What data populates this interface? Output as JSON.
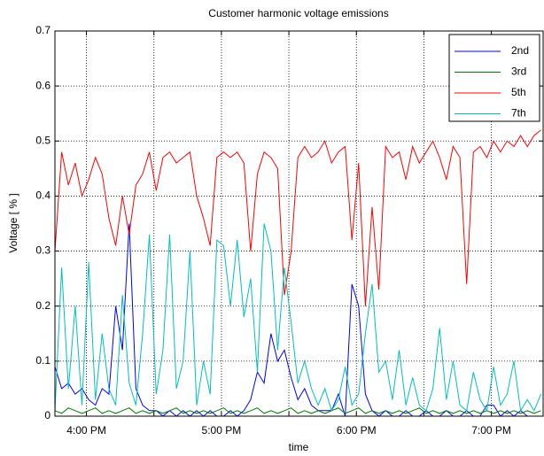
{
  "chart_data": {
    "type": "line",
    "title": "Customer harmonic voltage emissions",
    "xlabel": "time",
    "ylabel": "Voltage [ % ]",
    "x": [
      "3:46 PM",
      "3:49 PM",
      "3:52 PM",
      "3:55 PM",
      "3:58 PM",
      "4:01 PM",
      "4:04 PM",
      "4:07 PM",
      "4:10 PM",
      "4:13 PM",
      "4:16 PM",
      "4:19 PM",
      "4:22 PM",
      "4:25 PM",
      "4:28 PM",
      "4:31 PM",
      "4:34 PM",
      "4:37 PM",
      "4:40 PM",
      "4:43 PM",
      "4:46 PM",
      "4:49 PM",
      "4:52 PM",
      "4:55 PM",
      "4:58 PM",
      "5:01 PM",
      "5:04 PM",
      "5:07 PM",
      "5:10 PM",
      "5:13 PM",
      "5:16 PM",
      "5:19 PM",
      "5:22 PM",
      "5:25 PM",
      "5:28 PM",
      "5:31 PM",
      "5:34 PM",
      "5:37 PM",
      "5:40 PM",
      "5:43 PM",
      "5:46 PM",
      "5:49 PM",
      "5:52 PM",
      "5:55 PM",
      "5:58 PM",
      "6:01 PM",
      "6:04 PM",
      "6:07 PM",
      "6:10 PM",
      "6:13 PM",
      "6:16 PM",
      "6:19 PM",
      "6:22 PM",
      "6:25 PM",
      "6:28 PM",
      "6:31 PM",
      "6:34 PM",
      "6:37 PM",
      "6:40 PM",
      "6:43 PM",
      "6:46 PM",
      "6:49 PM",
      "6:52 PM",
      "6:55 PM",
      "6:58 PM",
      "7:01 PM",
      "7:04 PM",
      "7:07 PM",
      "7:10 PM",
      "7:13 PM",
      "7:16 PM",
      "7:19 PM",
      "7:22 PM"
    ],
    "series": [
      {
        "name": "2nd",
        "color": "#0000ff",
        "values": [
          0.09,
          0.05,
          0.06,
          0.04,
          0.05,
          0.03,
          0.02,
          0.05,
          0.04,
          0.2,
          0.12,
          0.35,
          0.05,
          0.02,
          0.01,
          0.01,
          0,
          0.01,
          0,
          0.01,
          0,
          0.01,
          0,
          0.01,
          0,
          0,
          0.01,
          0,
          0.01,
          0.03,
          0.08,
          0.06,
          0.15,
          0.1,
          0.12,
          0.07,
          0.03,
          0.05,
          0.02,
          0.01,
          0.01,
          0.01,
          0.04,
          0,
          0.24,
          0.2,
          0.04,
          0.01,
          0,
          0.01,
          0,
          0,
          0.01,
          0,
          0,
          0.01,
          0,
          0,
          0.01,
          0,
          0,
          0.01,
          0,
          0,
          0.02,
          0.02,
          0,
          0.01,
          0,
          0.01,
          0,
          0,
          0
        ]
      },
      {
        "name": "3rd",
        "color": "#008000",
        "values": [
          0.01,
          0.005,
          0.015,
          0.01,
          0.005,
          0.01,
          0.015,
          0.005,
          0.01,
          0.005,
          0.01,
          0.015,
          0.005,
          0.01,
          0.005,
          0.01,
          0.005,
          0.01,
          0.015,
          0.005,
          0.01,
          0.005,
          0.01,
          0.005,
          0.01,
          0.015,
          0.005,
          0.01,
          0.005,
          0.01,
          0.015,
          0.005,
          0.01,
          0.005,
          0.01,
          0.015,
          0.005,
          0.01,
          0.005,
          0.01,
          0.005,
          0.01,
          0.015,
          0.005,
          0.01,
          0.015,
          0.005,
          0.01,
          0.005,
          0.01,
          0.005,
          0.01,
          0.005,
          0.01,
          0.015,
          0.005,
          0.01,
          0.005,
          0.01,
          0.005,
          0.01,
          0.005,
          0.01,
          0.005,
          0.01,
          0.005,
          0.01,
          0.005,
          0.01,
          0.005,
          0.01,
          0.005,
          0.01
        ]
      },
      {
        "name": "5th",
        "color": "#ff0000",
        "values": [
          0.3,
          0.48,
          0.42,
          0.46,
          0.4,
          0.43,
          0.47,
          0.44,
          0.36,
          0.31,
          0.4,
          0.33,
          0.42,
          0.44,
          0.48,
          0.41,
          0.47,
          0.48,
          0.46,
          0.47,
          0.48,
          0.4,
          0.36,
          0.31,
          0.47,
          0.48,
          0.47,
          0.48,
          0.46,
          0.3,
          0.44,
          0.48,
          0.47,
          0.45,
          0.22,
          0.3,
          0.47,
          0.49,
          0.47,
          0.48,
          0.5,
          0.46,
          0.48,
          0.49,
          0.32,
          0.46,
          0.2,
          0.38,
          0.23,
          0.49,
          0.47,
          0.48,
          0.43,
          0.49,
          0.46,
          0.48,
          0.5,
          0.47,
          0.43,
          0.49,
          0.47,
          0.24,
          0.48,
          0.49,
          0.47,
          0.5,
          0.48,
          0.5,
          0.49,
          0.51,
          0.49,
          0.51,
          0.52
        ]
      },
      {
        "name": "7th",
        "color": "#00bfbf",
        "values": [
          0.01,
          0.27,
          0.05,
          0.2,
          0.02,
          0.28,
          0.03,
          0.15,
          0.05,
          0.02,
          0.22,
          0.06,
          0.02,
          0.15,
          0.33,
          0.04,
          0.12,
          0.33,
          0.05,
          0.1,
          0.3,
          0.02,
          0.1,
          0.04,
          0.32,
          0.31,
          0.2,
          0.32,
          0.18,
          0.25,
          0.08,
          0.35,
          0.3,
          0.12,
          0.27,
          0.17,
          0.06,
          0.1,
          0.05,
          0.02,
          0.05,
          0.01,
          0.03,
          0.09,
          0.02,
          0.04,
          0.15,
          0.24,
          0.08,
          0.1,
          0.03,
          0.12,
          0.02,
          0.07,
          0.02,
          0.01,
          0.05,
          0.16,
          0.03,
          0.1,
          0.02,
          0.01,
          0.08,
          0.03,
          0.01,
          0.09,
          0.02,
          0.04,
          0.1,
          0.01,
          0.03,
          0.01,
          0.04
        ]
      }
    ],
    "xlim": [
      "3:46 PM",
      "7:23 PM"
    ],
    "xticks": [
      "4:00 PM",
      {
        "value": "4:30 PM",
        "label": null
      },
      "5:00 PM",
      {
        "value": "5:30 PM",
        "label": null
      },
      "6:00 PM",
      {
        "value": "6:30 PM",
        "label": null
      },
      "7:00 PM"
    ],
    "ylim": [
      0,
      0.7
    ],
    "yticks": [
      0,
      0.1,
      0.2,
      0.3,
      0.4,
      0.5,
      0.6,
      0.7
    ],
    "grid": true,
    "legend": "upper right"
  }
}
